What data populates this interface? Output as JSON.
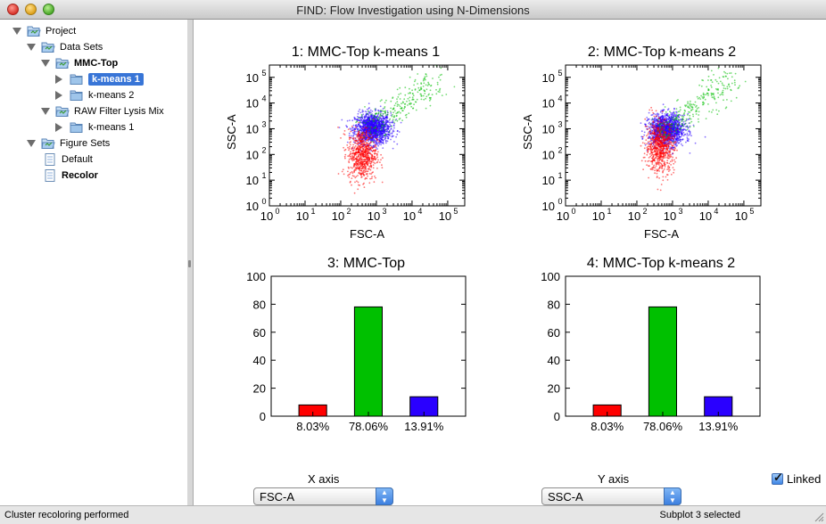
{
  "window": {
    "title": "FIND: Flow Investigation using N-Dimensions"
  },
  "sidebar": {
    "tree": [
      {
        "label": "Project",
        "icon": "folder-open-icon",
        "expanded": true,
        "bold": false,
        "selected": false
      },
      {
        "label": "Data Sets",
        "icon": "folder-open-icon",
        "expanded": true,
        "bold": false,
        "selected": false
      },
      {
        "label": "MMC-Top",
        "icon": "folder-open-icon",
        "expanded": true,
        "bold": true,
        "selected": false
      },
      {
        "label": "k-means 1",
        "icon": "folder-icon",
        "expanded": false,
        "bold": true,
        "selected": true
      },
      {
        "label": "k-means 2",
        "icon": "folder-icon",
        "expanded": false,
        "bold": false,
        "selected": false
      },
      {
        "label": "RAW Filter Lysis Mix",
        "icon": "folder-open-icon",
        "expanded": true,
        "bold": false,
        "selected": false
      },
      {
        "label": "k-means 1",
        "icon": "folder-icon",
        "expanded": false,
        "bold": false,
        "selected": false
      },
      {
        "label": "Figure Sets",
        "icon": "folder-open-icon",
        "expanded": true,
        "bold": false,
        "selected": false
      },
      {
        "label": "Default",
        "icon": "document-icon",
        "expanded": null,
        "bold": false,
        "selected": false
      },
      {
        "label": "Recolor",
        "icon": "document-icon",
        "expanded": null,
        "bold": true,
        "selected": false
      }
    ]
  },
  "plots": {
    "p1": {
      "title": "1: MMC-Top k-means 1",
      "xlabel": "FSC-A",
      "ylabel": "SSC-A"
    },
    "p2": {
      "title": "2: MMC-Top k-means 2",
      "xlabel": "FSC-A",
      "ylabel": "SSC-A"
    },
    "p3": {
      "title": "3: MMC-Top"
    },
    "p4": {
      "title": "4: MMC-Top k-means 2"
    }
  },
  "log_ticks": {
    "x": [
      "10",
      "10",
      "10",
      "10",
      "10",
      "10"
    ],
    "x_exp": [
      "0",
      "1",
      "2",
      "3",
      "4",
      "5"
    ],
    "y": [
      "10",
      "10",
      "10",
      "10",
      "10",
      "10"
    ],
    "y_exp": [
      "0",
      "1",
      "2",
      "3",
      "4",
      "5"
    ]
  },
  "controls": {
    "x_axis_label": "X axis",
    "x_axis_value": "FSC-A",
    "y_axis_label": "Y axis",
    "y_axis_value": "SSC-A",
    "linked_label": "Linked",
    "linked_checked": true
  },
  "status": {
    "left": "Cluster recoloring performed",
    "right": "Subplot 3 selected"
  },
  "colors": {
    "red": "#ff0000",
    "green": "#00c000",
    "blue": "#2a00ff",
    "selection": "#3875d7"
  },
  "chart_data": [
    {
      "type": "scatter",
      "title": "1: MMC-Top k-means 1",
      "xlabel": "FSC-A",
      "ylabel": "SSC-A",
      "xscale": "log",
      "yscale": "log",
      "xlim": [
        1,
        300000
      ],
      "ylim": [
        1,
        300000
      ],
      "x_ticks": [
        "10^0",
        "10^1",
        "10^2",
        "10^3",
        "10^4",
        "10^5"
      ],
      "y_ticks": [
        "10^0",
        "10^1",
        "10^2",
        "10^3",
        "10^4",
        "10^5"
      ],
      "grid": false,
      "series": [
        {
          "color": "#2a00ff",
          "cluster": {
            "x_center": 800,
            "y_center": 1000,
            "x_spread": 0.25,
            "y_spread": 0.3
          }
        },
        {
          "color": "#00c000",
          "cluster": {
            "x_center": 3000,
            "y_center": 5000,
            "x_spread": 0.55,
            "y_spread": 0.6
          }
        },
        {
          "color": "#ff0000",
          "cluster": {
            "x_center": 400,
            "y_center": 100,
            "x_spread": 0.2,
            "y_spread": 0.5
          }
        }
      ]
    },
    {
      "type": "scatter",
      "title": "2: MMC-Top k-means 2",
      "xlabel": "FSC-A",
      "ylabel": "SSC-A",
      "xscale": "log",
      "yscale": "log",
      "xlim": [
        1,
        300000
      ],
      "ylim": [
        1,
        300000
      ],
      "x_ticks": [
        "10^0",
        "10^1",
        "10^2",
        "10^3",
        "10^4",
        "10^5"
      ],
      "y_ticks": [
        "10^0",
        "10^1",
        "10^2",
        "10^3",
        "10^4",
        "10^5"
      ],
      "grid": false,
      "series": [
        {
          "color": "#2a00ff",
          "cluster": {
            "x_center": 700,
            "y_center": 900,
            "x_spread": 0.25,
            "y_spread": 0.3
          }
        },
        {
          "color": "#00c000",
          "cluster": {
            "x_center": 3000,
            "y_center": 5000,
            "x_spread": 0.55,
            "y_spread": 0.6
          }
        },
        {
          "color": "#ff0000",
          "cluster": {
            "x_center": 450,
            "y_center": 200,
            "x_spread": 0.2,
            "y_spread": 0.5
          }
        }
      ]
    },
    {
      "type": "bar",
      "title": "3: MMC-Top",
      "categories": [
        "8.03%",
        "78.06%",
        "13.91%"
      ],
      "values": [
        8.03,
        78.06,
        13.91
      ],
      "colors": [
        "#ff0000",
        "#00c000",
        "#2a00ff"
      ],
      "ylim": [
        0,
        100
      ],
      "y_ticks": [
        0,
        20,
        40,
        60,
        80,
        100
      ],
      "xlabel": "",
      "ylabel": ""
    },
    {
      "type": "bar",
      "title": "4: MMC-Top k-means 2",
      "categories": [
        "8.03%",
        "78.06%",
        "13.91%"
      ],
      "values": [
        8.03,
        78.06,
        13.91
      ],
      "colors": [
        "#ff0000",
        "#00c000",
        "#2a00ff"
      ],
      "ylim": [
        0,
        100
      ],
      "y_ticks": [
        0,
        20,
        40,
        60,
        80,
        100
      ],
      "xlabel": "",
      "ylabel": ""
    }
  ]
}
